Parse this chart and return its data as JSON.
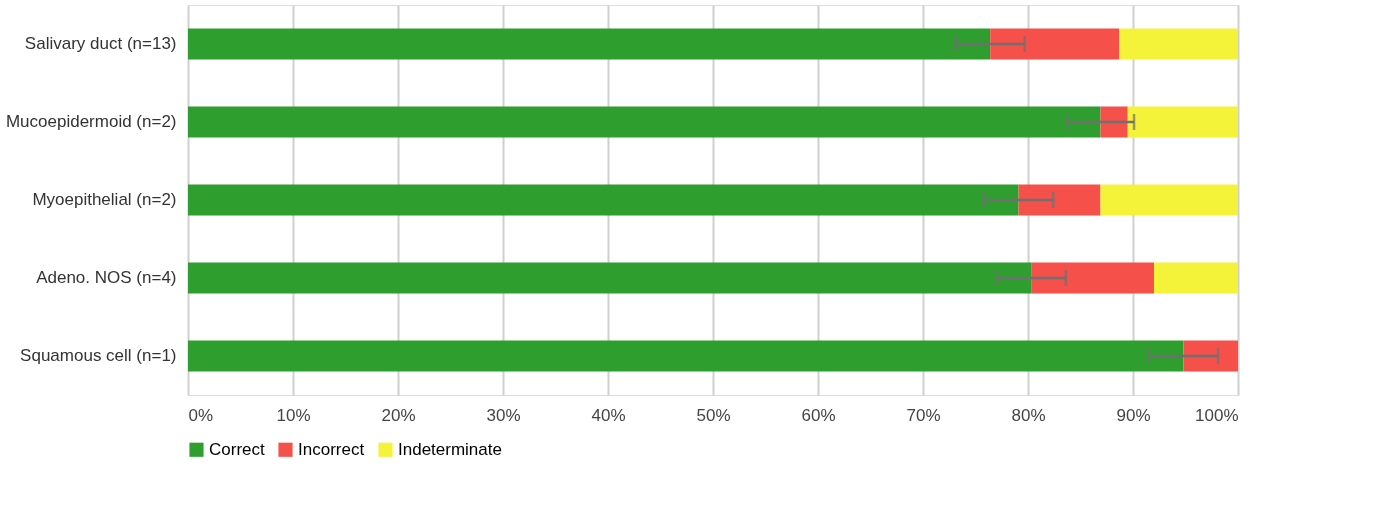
{
  "chart_data": {
    "type": "bar",
    "orientation": "horizontal",
    "stacked": true,
    "categories": [
      "Salivary duct (n=13)",
      "Mucoepidermoid (n=2)",
      "Myoepithelial (n=2)",
      "Adeno. NOS (n=4)",
      "Squamous cell (n=1)"
    ],
    "series": [
      {
        "name": "Correct",
        "color": "#2e9e2e",
        "values": [
          76.4,
          86.9,
          79.1,
          80.3,
          94.8
        ],
        "errors": [
          3.3,
          3.2,
          3.3,
          3.3,
          3.3
        ]
      },
      {
        "name": "Incorrect",
        "color": "#f5504a",
        "values": [
          12.3,
          2.6,
          7.8,
          11.7,
          5.2
        ]
      },
      {
        "name": "Indeterminate",
        "color": "#f5f23a",
        "values": [
          11.3,
          10.5,
          13.1,
          8.0,
          0
        ]
      }
    ],
    "xlim": [
      0,
      100
    ],
    "xticks": [
      {
        "value": 0,
        "label": "0%"
      },
      {
        "value": 10,
        "label": "10%"
      },
      {
        "value": 20,
        "label": "20%"
      },
      {
        "value": 30,
        "label": "30%"
      },
      {
        "value": 40,
        "label": "40%"
      },
      {
        "value": 50,
        "label": "50%"
      },
      {
        "value": 60,
        "label": "60%"
      },
      {
        "value": 70,
        "label": "70%"
      },
      {
        "value": 80,
        "label": "80%"
      },
      {
        "value": 90,
        "label": "90%"
      },
      {
        "value": 100,
        "label": "100%"
      }
    ],
    "grid": "x",
    "legend": "bottom"
  }
}
